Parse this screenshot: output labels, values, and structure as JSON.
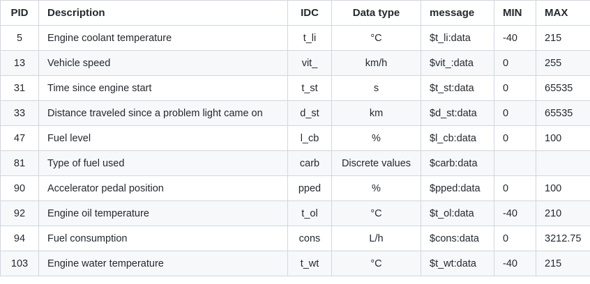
{
  "table": {
    "headers": {
      "pid": "PID",
      "description": "Description",
      "idc": "IDC",
      "data_type": "Data type",
      "message": "message",
      "min": "MIN",
      "max": "MAX"
    },
    "rows": [
      {
        "pid": "5",
        "description": "Engine coolant temperature",
        "idc": "t_li",
        "data_type": "°C",
        "message": "$t_li:data",
        "min": "-40",
        "max": "215"
      },
      {
        "pid": "13",
        "description": "Vehicle speed",
        "idc": "vit_",
        "data_type": "km/h",
        "message": "$vit_:data",
        "min": "0",
        "max": "255"
      },
      {
        "pid": "31",
        "description": "Time since engine start",
        "idc": "t_st",
        "data_type": "s",
        "message": "$t_st:data",
        "min": "0",
        "max": "65535"
      },
      {
        "pid": "33",
        "description": "Distance traveled since a problem light came on",
        "idc": "d_st",
        "data_type": "km",
        "message": "$d_st:data",
        "min": "0",
        "max": "65535"
      },
      {
        "pid": "47",
        "description": "Fuel level",
        "idc": "l_cb",
        "data_type": "%",
        "message": "$l_cb:data",
        "min": "0",
        "max": "100"
      },
      {
        "pid": "81",
        "description": "Type of fuel used",
        "idc": "carb",
        "data_type": "Discrete values",
        "message": "$carb:data",
        "min": "",
        "max": ""
      },
      {
        "pid": "90",
        "description": "Accelerator pedal position",
        "idc": "pped",
        "data_type": "%",
        "message": "$pped:data",
        "min": "0",
        "max": "100"
      },
      {
        "pid": "92",
        "description": "Engine oil temperature",
        "idc": "t_ol",
        "data_type": "°C",
        "message": "$t_ol:data",
        "min": "-40",
        "max": "210"
      },
      {
        "pid": "94",
        "description": "Fuel consumption",
        "idc": "cons",
        "data_type": "L/h",
        "message": "$cons:data",
        "min": "0",
        "max": "3212.75"
      },
      {
        "pid": "103",
        "description": "Engine water temperature",
        "idc": "t_wt",
        "data_type": "°C",
        "message": "$t_wt:data",
        "min": "-40",
        "max": "215"
      }
    ]
  }
}
